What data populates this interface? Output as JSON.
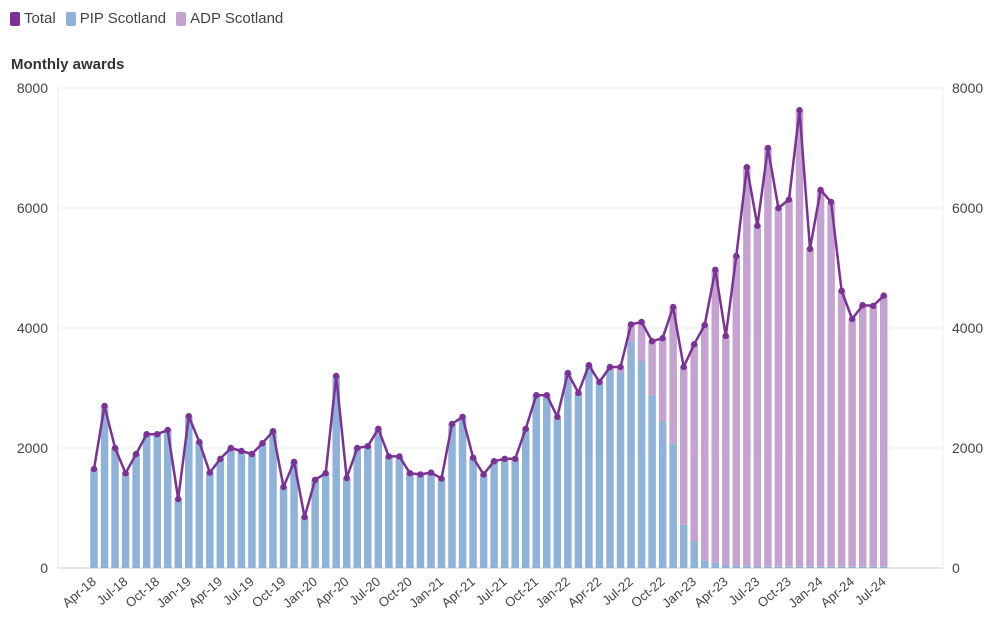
{
  "chart_data": {
    "type": "bar",
    "title": "Monthly awards",
    "legend": [
      {
        "name": "Total",
        "color": "#7b3294",
        "kind": "line"
      },
      {
        "name": "PIP Scotland",
        "color": "#8fb2d9",
        "kind": "bar"
      },
      {
        "name": "ADP Scotland",
        "color": "#c4a3d0",
        "kind": "bar"
      }
    ],
    "ylim": [
      0,
      8000
    ],
    "yticks": [
      "0",
      "2000",
      "4000",
      "6000",
      "8000"
    ],
    "ytick_values": [
      0,
      2000,
      4000,
      6000,
      8000
    ],
    "xtick_labels": [
      "Apr-18",
      "Jul-18",
      "Oct-18",
      "Jan-19",
      "Apr-19",
      "Jul-19",
      "Oct-19",
      "Jan-20",
      "Apr-20",
      "Jul-20",
      "Oct-20",
      "Jan-21",
      "Apr-21",
      "Jul-21",
      "Oct-21",
      "Jan-22",
      "Apr-22",
      "Jul-22",
      "Oct-22",
      "Jan-23",
      "Apr-23",
      "Jul-23",
      "Oct-23",
      "Jan-24",
      "Apr-24",
      "Jul-24"
    ],
    "series": [
      {
        "name": "PIP Scotland",
        "values": [
          1650,
          2700,
          2000,
          1580,
          1900,
          2230,
          2230,
          2300,
          1150,
          2530,
          2100,
          1590,
          1820,
          2000,
          1950,
          1900,
          2080,
          2280,
          1350,
          1770,
          850,
          1470,
          1580,
          3200,
          1500,
          2000,
          2030,
          2320,
          1860,
          1860,
          1580,
          1560,
          1590,
          1490,
          2400,
          2520,
          1840,
          1560,
          1780,
          1820,
          1820,
          2320,
          2880,
          2880,
          2520,
          3250,
          2920,
          3380,
          3100,
          3300,
          3250,
          3780,
          3450,
          2880,
          2450,
          2070,
          720,
          450,
          130,
          90,
          50,
          40,
          30,
          25,
          20,
          20,
          20,
          20,
          20,
          20,
          20,
          20,
          20,
          20,
          20,
          20
        ]
      },
      {
        "name": "ADP Scotland",
        "values": [
          0,
          0,
          0,
          0,
          0,
          0,
          0,
          0,
          0,
          0,
          0,
          0,
          0,
          0,
          0,
          0,
          0,
          0,
          0,
          0,
          0,
          0,
          0,
          0,
          0,
          0,
          0,
          0,
          0,
          0,
          0,
          0,
          0,
          0,
          0,
          0,
          0,
          0,
          0,
          0,
          0,
          0,
          0,
          0,
          0,
          0,
          0,
          0,
          0,
          50,
          100,
          280,
          650,
          900,
          1380,
          2280,
          2630,
          3280,
          3920,
          4880,
          3820,
          5160,
          6650,
          5680,
          6980,
          5980,
          6120,
          7610,
          5300,
          6280,
          6080,
          4600,
          4130,
          4360,
          4350,
          4520
        ]
      },
      {
        "name": "Total",
        "values": [
          1650,
          2700,
          2000,
          1580,
          1900,
          2230,
          2230,
          2300,
          1150,
          2530,
          2100,
          1590,
          1820,
          2000,
          1950,
          1900,
          2080,
          2280,
          1350,
          1770,
          850,
          1470,
          1580,
          3200,
          1500,
          2000,
          2030,
          2320,
          1860,
          1860,
          1580,
          1560,
          1590,
          1490,
          2400,
          2520,
          1840,
          1560,
          1780,
          1820,
          1820,
          2320,
          2880,
          2880,
          2520,
          3250,
          2920,
          3380,
          3100,
          3350,
          3350,
          4060,
          4100,
          3780,
          3830,
          4350,
          3350,
          3730,
          4050,
          4970,
          3870,
          5200,
          6680,
          5705,
          7000,
          6000,
          6140,
          7630,
          5320,
          6300,
          6100,
          4620,
          4150,
          4380,
          4370,
          4540
        ]
      }
    ]
  }
}
